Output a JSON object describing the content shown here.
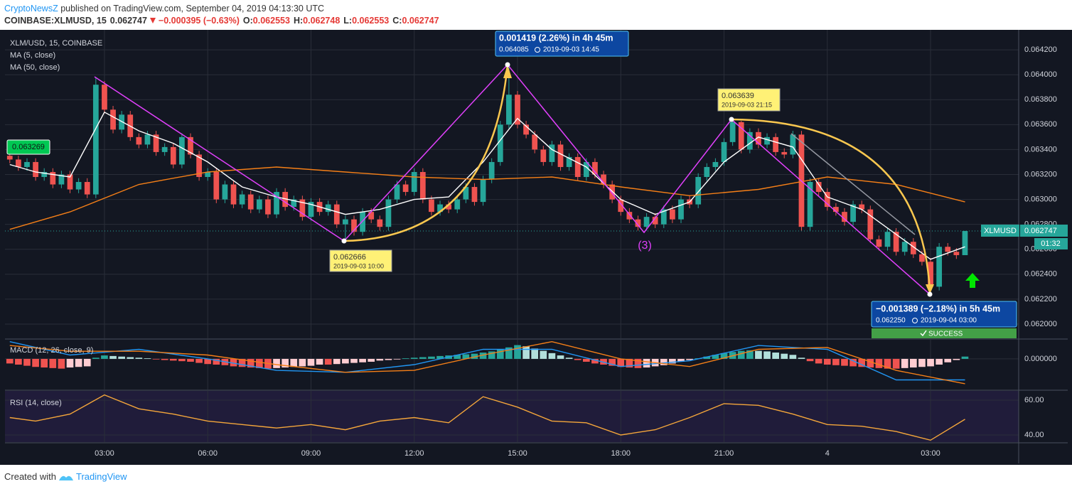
{
  "header": {
    "publisher": "CryptoNewsZ",
    "published": " published on TradingView.com, September 04, 2019 04:13:30 UTC",
    "symbol": "COINBASE:XLMUSD, 15",
    "change": "−0.000395 (−0.63%)",
    "o_label": "O:",
    "h_label": "H:",
    "l_label": "L:",
    "c_label": "C:"
  },
  "footer": {
    "created": "Created with",
    "brand": "TradingView"
  },
  "chart_data": [
    {
      "type": "candlestick",
      "title": "XLM/USD, 15, COINBASE",
      "up_color": "#26a69a",
      "down_color": "#ef5350",
      "grid": true,
      "xlim": [
        0.11,
        29.56
      ],
      "xticks": [
        {
          "value": 3,
          "label": "03:00"
        },
        {
          "value": 6,
          "label": "06:00"
        },
        {
          "value": 9,
          "label": "09:00"
        },
        {
          "value": 12,
          "label": "12:00"
        },
        {
          "value": 15,
          "label": "15:00"
        },
        {
          "value": 18,
          "label": "18:00"
        },
        {
          "value": 21,
          "label": "21:00"
        },
        {
          "value": 24,
          "label": "4"
        },
        {
          "value": 27,
          "label": "03:00"
        }
      ],
      "ylim": [
        0.061886,
        0.06436
      ],
      "yticks": [
        {
          "value": 0.062,
          "label": "0.062000"
        },
        {
          "value": 0.0622,
          "label": "0.062200"
        },
        {
          "value": 0.0624,
          "label": "0.062400"
        },
        {
          "value": 0.0626,
          "label": "0.062600"
        },
        {
          "value": 0.0628,
          "label": "0.062800"
        },
        {
          "value": 0.063,
          "label": "0.063000"
        },
        {
          "value": 0.0632,
          "label": "0.063200"
        },
        {
          "value": 0.0634,
          "label": "0.063400"
        },
        {
          "value": 0.0636,
          "label": "0.063600"
        },
        {
          "value": 0.0638,
          "label": "0.063800"
        },
        {
          "value": 0.064,
          "label": "0.064000"
        },
        {
          "value": 0.0642,
          "label": "0.064200"
        }
      ],
      "x": [
        0.25,
        0.5,
        0.75,
        1,
        1.25,
        1.5,
        1.75,
        2,
        2.25,
        2.5,
        2.75,
        3,
        3.25,
        3.5,
        3.75,
        4,
        4.25,
        4.5,
        4.75,
        5,
        5.25,
        5.5,
        5.75,
        6,
        6.25,
        6.5,
        6.75,
        7,
        7.25,
        7.5,
        7.75,
        8,
        8.25,
        8.5,
        8.75,
        9,
        9.25,
        9.5,
        9.75,
        10,
        10.25,
        10.5,
        10.75,
        11,
        11.25,
        11.5,
        11.75,
        12,
        12.25,
        12.5,
        12.75,
        13,
        13.25,
        13.5,
        13.75,
        14,
        14.25,
        14.5,
        14.75,
        15,
        15.25,
        15.5,
        15.75,
        16,
        16.25,
        16.5,
        16.75,
        17,
        17.25,
        17.5,
        17.75,
        18,
        18.25,
        18.5,
        18.75,
        19,
        19.25,
        19.5,
        19.75,
        20,
        20.25,
        20.5,
        20.75,
        21,
        21.25,
        21.5,
        21.75,
        22,
        22.25,
        22.5,
        22.75,
        23,
        23.25,
        23.5,
        23.75,
        24,
        24.25,
        24.5,
        24.75,
        25,
        25.25,
        25.5,
        25.75,
        26,
        26.25,
        26.5,
        26.75,
        27,
        27.25,
        27.5,
        27.75,
        28
      ],
      "open": [
        0.06335,
        0.06332,
        0.06326,
        0.0633,
        0.06318,
        0.06322,
        0.06312,
        0.0632,
        0.06308,
        0.06314,
        0.06304,
        0.06392,
        0.06372,
        0.06356,
        0.06368,
        0.0635,
        0.06344,
        0.06352,
        0.06338,
        0.06342,
        0.06328,
        0.0635,
        0.06336,
        0.06318,
        0.06322,
        0.063,
        0.06312,
        0.06296,
        0.06304,
        0.06292,
        0.063,
        0.06288,
        0.06306,
        0.06294,
        0.063,
        0.06286,
        0.06298,
        0.0629,
        0.06296,
        0.0628,
        0.06284,
        0.06274,
        0.0629,
        0.06284,
        0.06278,
        0.063,
        0.06312,
        0.06306,
        0.06322,
        0.063,
        0.0629,
        0.06296,
        0.06292,
        0.063,
        0.0631,
        0.06298,
        0.06316,
        0.0633,
        0.0636,
        0.06384,
        0.0636,
        0.06352,
        0.0634,
        0.0633,
        0.06344,
        0.06326,
        0.06334,
        0.06318,
        0.0633,
        0.0632,
        0.06312,
        0.063,
        0.0629,
        0.06284,
        0.06278,
        0.06286,
        0.0628,
        0.06292,
        0.06284,
        0.063,
        0.06296,
        0.06318,
        0.06326,
        0.0633,
        0.06346,
        0.06362,
        0.0634,
        0.06354,
        0.06344,
        0.0635,
        0.06338,
        0.06336,
        0.06352,
        0.06278,
        0.06314,
        0.06306,
        0.06294,
        0.0629,
        0.06282,
        0.06296,
        0.06292,
        0.06268,
        0.06262,
        0.06274,
        0.06258,
        0.06266,
        0.06256,
        0.0625,
        0.0623,
        0.06262,
        0.06258,
        0.062553
      ],
      "high": [
        0.06338,
        0.06335,
        0.06333,
        0.06333,
        0.06325,
        0.06325,
        0.06323,
        0.06323,
        0.06317,
        0.06317,
        0.06398,
        0.06395,
        0.06375,
        0.06371,
        0.06371,
        0.06353,
        0.06355,
        0.06355,
        0.06345,
        0.06345,
        0.06353,
        0.06353,
        0.06339,
        0.06325,
        0.06325,
        0.06315,
        0.06315,
        0.06307,
        0.06307,
        0.06303,
        0.06303,
        0.06309,
        0.06309,
        0.06303,
        0.06303,
        0.06301,
        0.06301,
        0.06299,
        0.06299,
        0.06287,
        0.06287,
        0.06293,
        0.06293,
        0.06287,
        0.06303,
        0.06315,
        0.06315,
        0.06325,
        0.06325,
        0.06303,
        0.06299,
        0.06299,
        0.06303,
        0.06313,
        0.06313,
        0.06319,
        0.06333,
        0.06363,
        0.064085,
        0.06387,
        0.06363,
        0.06355,
        0.06343,
        0.06347,
        0.06347,
        0.06337,
        0.06337,
        0.06333,
        0.06333,
        0.06323,
        0.06315,
        0.06303,
        0.06293,
        0.06287,
        0.06289,
        0.06289,
        0.06295,
        0.06295,
        0.06303,
        0.06303,
        0.06321,
        0.06329,
        0.06333,
        0.06349,
        0.063639,
        0.06363,
        0.06357,
        0.06357,
        0.06353,
        0.06353,
        0.06341,
        0.06355,
        0.06355,
        0.06317,
        0.06317,
        0.06309,
        0.06297,
        0.06293,
        0.06299,
        0.06299,
        0.06295,
        0.06271,
        0.06277,
        0.06277,
        0.06269,
        0.06269,
        0.06259,
        0.06253,
        0.06265,
        0.06265,
        0.06261,
        0.062748
      ],
      "low": [
        0.06329,
        0.06323,
        0.06323,
        0.06315,
        0.06315,
        0.06309,
        0.06309,
        0.06305,
        0.06305,
        0.06301,
        0.06301,
        0.06369,
        0.06353,
        0.06353,
        0.06347,
        0.06341,
        0.06341,
        0.06335,
        0.06335,
        0.06325,
        0.06325,
        0.06333,
        0.06315,
        0.06315,
        0.06297,
        0.06297,
        0.06293,
        0.06293,
        0.06289,
        0.06289,
        0.06285,
        0.06285,
        0.06291,
        0.06291,
        0.06283,
        0.06283,
        0.06287,
        0.06287,
        0.06277,
        0.062666,
        0.06271,
        0.06271,
        0.06281,
        0.06275,
        0.06275,
        0.06297,
        0.06303,
        0.06303,
        0.06297,
        0.06287,
        0.06287,
        0.06289,
        0.06289,
        0.06297,
        0.06295,
        0.06295,
        0.06313,
        0.06327,
        0.06357,
        0.06357,
        0.06349,
        0.06337,
        0.06327,
        0.06327,
        0.06323,
        0.06323,
        0.06315,
        0.06315,
        0.06317,
        0.06309,
        0.06297,
        0.06287,
        0.06281,
        0.06275,
        0.06275,
        0.06277,
        0.06277,
        0.06281,
        0.06281,
        0.06293,
        0.06293,
        0.06315,
        0.06323,
        0.06327,
        0.06343,
        0.06337,
        0.06337,
        0.06341,
        0.06341,
        0.06335,
        0.06333,
        0.06333,
        0.06275,
        0.06275,
        0.06303,
        0.06291,
        0.06287,
        0.06279,
        0.06279,
        0.06289,
        0.06265,
        0.06259,
        0.06259,
        0.06255,
        0.06255,
        0.06253,
        0.06247,
        0.06225,
        0.06227,
        0.06255,
        0.062523,
        0.062553
      ],
      "close": [
        0.06332,
        0.06326,
        0.0633,
        0.06318,
        0.06322,
        0.06312,
        0.0632,
        0.06308,
        0.06314,
        0.06304,
        0.06392,
        0.06372,
        0.06356,
        0.06368,
        0.0635,
        0.06344,
        0.06352,
        0.06338,
        0.06342,
        0.06328,
        0.0635,
        0.06336,
        0.06318,
        0.06322,
        0.063,
        0.06312,
        0.06296,
        0.06304,
        0.06292,
        0.063,
        0.06288,
        0.06306,
        0.06294,
        0.063,
        0.06286,
        0.06298,
        0.0629,
        0.06296,
        0.0628,
        0.06284,
        0.06274,
        0.0629,
        0.06284,
        0.06278,
        0.063,
        0.06312,
        0.06306,
        0.06322,
        0.063,
        0.0629,
        0.06296,
        0.06292,
        0.063,
        0.0631,
        0.06298,
        0.06316,
        0.0633,
        0.0636,
        0.06384,
        0.0636,
        0.06352,
        0.0634,
        0.0633,
        0.06344,
        0.06326,
        0.06334,
        0.06318,
        0.0633,
        0.0632,
        0.06312,
        0.063,
        0.0629,
        0.06284,
        0.06278,
        0.06286,
        0.0628,
        0.06292,
        0.06284,
        0.063,
        0.06296,
        0.06318,
        0.06326,
        0.0633,
        0.06346,
        0.06362,
        0.0634,
        0.06354,
        0.06344,
        0.0635,
        0.06338,
        0.06336,
        0.06352,
        0.06278,
        0.06314,
        0.06306,
        0.06294,
        0.0629,
        0.06282,
        0.06296,
        0.06292,
        0.06268,
        0.06262,
        0.06274,
        0.06258,
        0.06266,
        0.06256,
        0.0625,
        0.0623,
        0.06262,
        0.06258,
        0.062553,
        0.062747
      ],
      "series": [
        {
          "name": "MA (5, close)",
          "color": "#ffffff",
          "x": [
            0.25,
            1,
            2,
            3,
            4,
            5,
            6,
            7,
            8,
            9,
            10,
            11,
            12,
            13,
            14,
            15,
            16,
            17,
            18,
            19,
            20,
            21,
            22,
            23,
            24,
            25,
            26,
            27,
            28
          ],
          "values": [
            0.06328,
            0.06322,
            0.06318,
            0.0637,
            0.06355,
            0.06345,
            0.0633,
            0.0631,
            0.06302,
            0.06296,
            0.06288,
            0.06292,
            0.063,
            0.06302,
            0.0633,
            0.06365,
            0.0634,
            0.06326,
            0.063,
            0.06288,
            0.06298,
            0.0633,
            0.0635,
            0.06342,
            0.06302,
            0.06292,
            0.06272,
            0.06252,
            0.06262
          ]
        },
        {
          "name": "MA (50, close)",
          "color": "#f57f17",
          "x": [
            0.25,
            2,
            4,
            6,
            8,
            10,
            12,
            14,
            16,
            18,
            20,
            22,
            24,
            26,
            28
          ],
          "values": [
            0.06276,
            0.0629,
            0.06312,
            0.06322,
            0.06326,
            0.06322,
            0.06318,
            0.06316,
            0.06318,
            0.0631,
            0.06303,
            0.06308,
            0.06318,
            0.06312,
            0.06298
          ]
        }
      ],
      "annotations": {
        "rise": {
          "change": "0.001419 (2.26%) in 4h 45m",
          "price": "0.064085",
          "time": "2019-09-03 14:45"
        },
        "low": {
          "price": "0.062666",
          "time": "2019-09-03 10:00"
        },
        "high": {
          "price": "0.063639",
          "time": "2019-09-03 21:15"
        },
        "fall": {
          "change": "−0.001389 (−2.18%) in 5h 45m",
          "price": "0.062250",
          "time": "2019-09-04 03:00",
          "status": "SUCCESS"
        },
        "wave": "(3)",
        "left_price": "0.063269",
        "symbol_tag": "XLMUSD",
        "countdown": "01:32"
      }
    },
    {
      "type": "macd",
      "title": "MACD (12, 26, close, 9)",
      "ylim": [
        -0.00016,
        0.0001
      ],
      "yticks": [
        {
          "value": 0,
          "label": "0.000000"
        }
      ],
      "histogram_colors": [
        "#26a69a",
        "#b2dfdb",
        "#ef5350",
        "#ffcdd2"
      ],
      "histogram": [
        -2.4e-05,
        -3e-05,
        -3.6e-05,
        -4.2e-05,
        -4.5e-05,
        -4.8e-05,
        -5.1e-05,
        -4.5e-05,
        -4.2e-05,
        -3.9e-05,
        6e-06,
        1.8e-05,
        1.5e-05,
        1.2e-05,
        9e-06,
        6e-06,
        3e-06,
        -3e-06,
        -6e-06,
        -9e-06,
        -1.2e-05,
        -1.5e-05,
        -2.1e-05,
        -2.7e-05,
        -3e-05,
        -3.3e-05,
        -3.9e-05,
        -4.2e-05,
        -4.5e-05,
        -4.8e-05,
        -5.1e-05,
        -4.8e-05,
        -4.5e-05,
        -4.2e-05,
        -3.9e-05,
        -3.6e-05,
        -3e-05,
        -3e-05,
        -2.7e-05,
        -2.4e-05,
        -2.1e-05,
        -1.8e-05,
        -1.5e-05,
        -9e-06,
        -6e-06,
        -3e-06,
        3e-06,
        6e-06,
        9e-06,
        1.2e-05,
        1.5e-05,
        1.8e-05,
        2.1e-05,
        2.4e-05,
        2.7e-05,
        3.3e-05,
        3.9e-05,
        4.8e-05,
        6e-05,
        7.2e-05,
        6.6e-05,
        5.4e-05,
        4.2e-05,
        3e-05,
        1.8e-05,
        6e-06,
        -6e-06,
        -1.5e-05,
        -2.4e-05,
        -3e-05,
        -3.6e-05,
        -4.2e-05,
        -4.5e-05,
        -4.8e-05,
        -4.5e-05,
        -3.9e-05,
        -3.3e-05,
        -2.4e-05,
        -1.5e-05,
        -6e-06,
        3e-06,
        1.2e-05,
        2.1e-05,
        3e-05,
        3.6e-05,
        4.2e-05,
        4.5e-05,
        4.2e-05,
        3.9e-05,
        3.3e-05,
        2.7e-05,
        2.1e-05,
        6e-06,
        -1.2e-05,
        -2.4e-05,
        -3e-05,
        -3.3e-05,
        -3.6e-05,
        -3.9e-05,
        -4.2e-05,
        -4.5e-05,
        -4.8e-05,
        -5.1e-05,
        -5.1e-05,
        -4.8e-05,
        -4.5e-05,
        -4.2e-05,
        -3.9e-05,
        -3e-05,
        -1.8e-05,
        -6e-06,
        1.2e-05
      ],
      "series": [
        {
          "color": "#2196f3",
          "x": [
            0.25,
            2,
            4,
            6,
            8,
            10,
            12,
            14,
            16,
            18,
            20,
            22,
            24,
            26,
            28
          ],
          "values": [
            9e-05,
            2e-05,
            5e-05,
            0,
            -6e-05,
            -7e-05,
            -3e-05,
            5e-05,
            5e-05,
            -4e-05,
            -1e-05,
            7e-05,
            5e-05,
            -0.00011,
            -0.00011
          ]
        },
        {
          "color": "#f57f17",
          "x": [
            0.25,
            2,
            4,
            6,
            8,
            10,
            12,
            14,
            16,
            18,
            20,
            22,
            24,
            26,
            28
          ],
          "values": [
            7e-05,
            4e-05,
            4e-05,
            2e-05,
            -3e-05,
            -7e-05,
            -6e-05,
            2e-05,
            9e-05,
            0,
            -4e-05,
            5e-05,
            6e-05,
            -6e-05,
            -0.00013
          ]
        }
      ]
    },
    {
      "type": "line",
      "title": "RSI (14, close)",
      "ylim": [
        35.9,
        65.3
      ],
      "yticks": [
        {
          "value": 40,
          "label": "40.00"
        },
        {
          "value": 60,
          "label": "60.00"
        }
      ],
      "series": [
        {
          "color": "#f4a63a",
          "x": [
            0.25,
            1,
            2,
            3,
            4,
            5,
            6,
            7,
            8,
            9,
            10,
            11,
            12,
            13,
            14,
            15,
            16,
            17,
            18,
            19,
            20,
            21,
            22,
            23,
            24,
            25,
            26,
            27,
            28
          ],
          "values": [
            50,
            48,
            52,
            63,
            55,
            52,
            48,
            46,
            44,
            46,
            43,
            48,
            50,
            47,
            62,
            56,
            48,
            47,
            40,
            43,
            50,
            58,
            57,
            52,
            46,
            45,
            42,
            37,
            49
          ]
        }
      ]
    }
  ]
}
